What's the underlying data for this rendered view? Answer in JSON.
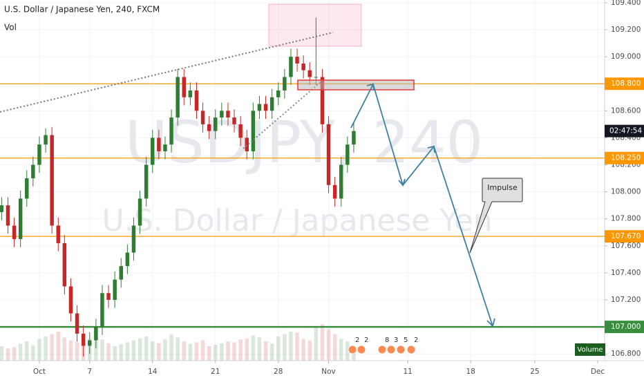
{
  "chart_data": {
    "type": "candlestick",
    "title": "U.S. Dollar / Japanese Yen, 240, FXCM",
    "volume_title": "Vol",
    "watermark": "USDJPY, 240",
    "watermark_subtitle": "U.S. Dollar / Japanese Yen",
    "volume_badge": "Volume",
    "annotation": "Impulse",
    "countdown": "02:47:54",
    "up_color": "#2e7d32",
    "down_color": "#c62828",
    "grid": true,
    "xlim": [
      -3.13,
      44.95
    ],
    "ylim": [
      106.75,
      109.42
    ],
    "xticks": [
      {
        "value": 0,
        "label": "Oct"
      },
      {
        "value": 4,
        "label": "7"
      },
      {
        "value": 9,
        "label": "14"
      },
      {
        "value": 14,
        "label": "21"
      },
      {
        "value": 19,
        "label": "28"
      },
      {
        "value": 23,
        "label": "Nov"
      },
      {
        "value": 29.3,
        "label": "11"
      },
      {
        "value": 34.3,
        "label": "18"
      },
      {
        "value": 39.4,
        "label": "25"
      },
      {
        "value": 44.4,
        "label": "Dec"
      }
    ],
    "yticks": [
      {
        "value": 106.8,
        "label": "106.800"
      },
      {
        "value": 107.0,
        "label": "107.000"
      },
      {
        "value": 107.2,
        "label": "107.200"
      },
      {
        "value": 107.4,
        "label": "107.400"
      },
      {
        "value": 107.6,
        "label": "107.600"
      },
      {
        "value": 107.8,
        "label": "107.800"
      },
      {
        "value": 108.0,
        "label": "108.000"
      },
      {
        "value": 108.2,
        "label": "108.200"
      },
      {
        "value": 108.4,
        "label": "108.400"
      },
      {
        "value": 108.6,
        "label": "108.600"
      },
      {
        "value": 108.8,
        "label": "108.800"
      },
      {
        "value": 109.0,
        "label": "109.000"
      },
      {
        "value": 109.2,
        "label": "109.200"
      },
      {
        "value": 109.4,
        "label": "109.400"
      }
    ],
    "levels": [
      {
        "value": 108.8,
        "label": "108.800",
        "color": "#ff9800"
      },
      {
        "value": 108.25,
        "label": "108.250",
        "color": "#ff9800"
      },
      {
        "value": 107.67,
        "label": "107.670",
        "color": "#ff9800"
      },
      {
        "value": 107.0,
        "label": "107.000",
        "color": "#388e3c"
      }
    ],
    "events": [
      2,
      2,
      8,
      3,
      5,
      2
    ],
    "candles": {
      "x": [
        -3,
        -2.5,
        -2,
        -1.5,
        -1,
        -0.5,
        0,
        0.5,
        1,
        1.5,
        2,
        2.5,
        3,
        3.5,
        4,
        4.5,
        5,
        5.5,
        6,
        6.5,
        7,
        7.5,
        8,
        8.5,
        9,
        9.5,
        10,
        10.5,
        11,
        11.5,
        12,
        12.5,
        13,
        13.5,
        14,
        14.5,
        15,
        15.5,
        16,
        16.5,
        17,
        17.5,
        18,
        18.5,
        19,
        19.5,
        20,
        20.5,
        21,
        21.5,
        22,
        22.5,
        23,
        23.5,
        24,
        24.5,
        25
      ],
      "open": [
        107.85,
        107.9,
        107.75,
        107.65,
        107.95,
        108.1,
        108.2,
        108.35,
        108.42,
        107.75,
        107.62,
        107.3,
        107.1,
        106.95,
        106.86,
        106.9,
        107.0,
        107.25,
        107.2,
        107.35,
        107.45,
        107.55,
        107.75,
        107.95,
        108.2,
        108.4,
        108.3,
        108.35,
        108.55,
        108.85,
        108.7,
        108.75,
        108.6,
        108.5,
        108.45,
        108.55,
        108.6,
        108.55,
        108.5,
        108.4,
        108.3,
        108.6,
        108.65,
        108.6,
        108.7,
        108.75,
        108.85,
        109.0,
        108.95,
        108.9,
        108.85,
        108.85,
        108.5,
        108.05,
        107.95,
        108.2,
        108.35
      ],
      "high": [
        107.96,
        107.96,
        107.81,
        108.01,
        108.16,
        108.26,
        108.41,
        108.47,
        108.48,
        107.81,
        107.68,
        107.36,
        107.16,
        107.01,
        106.96,
        107.06,
        107.31,
        107.31,
        107.41,
        107.51,
        107.61,
        107.81,
        108.01,
        108.26,
        108.46,
        108.46,
        108.41,
        108.61,
        108.91,
        108.91,
        108.81,
        108.81,
        108.66,
        108.56,
        108.61,
        108.66,
        108.66,
        108.61,
        108.56,
        108.46,
        108.66,
        108.71,
        108.71,
        108.76,
        108.81,
        108.91,
        109.06,
        109.06,
        109.01,
        108.96,
        109.29,
        108.91,
        108.56,
        108.11,
        108.26,
        108.41,
        108.51
      ],
      "low": [
        107.79,
        107.69,
        107.59,
        107.59,
        107.89,
        108.04,
        108.14,
        108.29,
        107.69,
        107.56,
        107.24,
        107.04,
        106.89,
        106.78,
        106.8,
        106.84,
        106.94,
        107.14,
        107.14,
        107.29,
        107.39,
        107.49,
        107.69,
        107.89,
        108.14,
        108.24,
        108.24,
        108.29,
        108.49,
        108.64,
        108.64,
        108.54,
        108.44,
        108.39,
        108.39,
        108.49,
        108.49,
        108.44,
        108.34,
        108.24,
        108.24,
        108.54,
        108.54,
        108.54,
        108.64,
        108.69,
        108.79,
        108.89,
        108.84,
        108.79,
        108.79,
        108.44,
        107.99,
        107.89,
        107.89,
        108.14,
        108.29
      ],
      "close": [
        107.9,
        107.75,
        107.65,
        107.95,
        108.1,
        108.2,
        108.35,
        108.42,
        107.75,
        107.62,
        107.3,
        107.1,
        106.95,
        106.86,
        106.9,
        107.0,
        107.25,
        107.2,
        107.35,
        107.45,
        107.55,
        107.75,
        107.95,
        108.2,
        108.4,
        108.3,
        108.35,
        108.55,
        108.85,
        108.7,
        108.75,
        108.6,
        108.5,
        108.45,
        108.55,
        108.6,
        108.55,
        108.5,
        108.4,
        108.3,
        108.6,
        108.65,
        108.6,
        108.7,
        108.75,
        108.85,
        109.0,
        108.95,
        108.9,
        108.85,
        108.85,
        108.5,
        108.05,
        107.95,
        108.2,
        108.35,
        108.45
      ],
      "volume": [
        30,
        25,
        28,
        35,
        40,
        32,
        45,
        50,
        55,
        60,
        48,
        42,
        38,
        52,
        45,
        40,
        44,
        36,
        30,
        34,
        38,
        42,
        46,
        50,
        40,
        36,
        44,
        55,
        48,
        40,
        35,
        38,
        42,
        30,
        33,
        36,
        40,
        38,
        44,
        46,
        52,
        48,
        40,
        35,
        50,
        55,
        60,
        58,
        45,
        42,
        70,
        75,
        65,
        55,
        45,
        40,
        30
      ]
    }
  }
}
